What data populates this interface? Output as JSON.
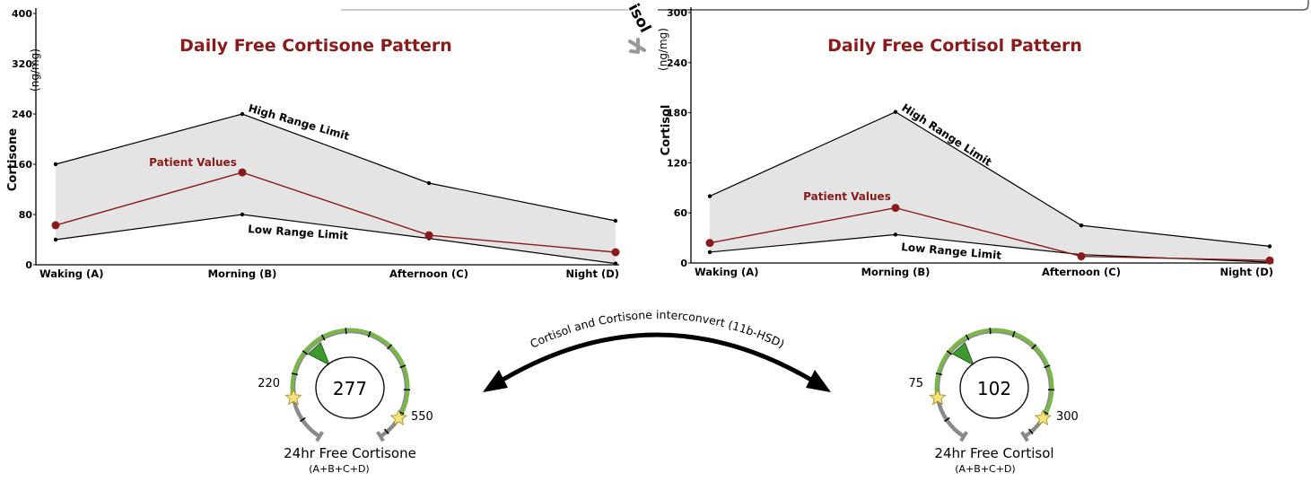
{
  "chart_data": [
    {
      "type": "line",
      "title": "Daily Free Cortisone Pattern",
      "ylabel": "Cortisone",
      "yunit": "(ng/mg)",
      "ylim": [
        0,
        400
      ],
      "yticks": [
        "0",
        "80",
        "160",
        "240",
        "320",
        "400"
      ],
      "categories": [
        "Waking (A)",
        "Morning (B)",
        "Afternoon (C)",
        "Night (D)"
      ],
      "series": [
        {
          "name": "High Range Limit",
          "values": [
            160,
            240,
            130,
            70
          ],
          "color": "#000000"
        },
        {
          "name": "Low Range Limit",
          "values": [
            40,
            80,
            42,
            2
          ],
          "color": "#000000"
        },
        {
          "name": "Patient Values",
          "values": [
            63,
            147,
            47,
            20
          ],
          "color": "#8b1a1a"
        }
      ],
      "band_color": "#e4e4e4"
    },
    {
      "type": "line",
      "title": "Daily Free Cortisol Pattern",
      "ylabel": "Cortisol",
      "yunit": "(ng/mg)",
      "ylim": [
        0,
        300
      ],
      "yticks": [
        "0",
        "60",
        "120",
        "180",
        "240",
        "300"
      ],
      "categories": [
        "Waking (A)",
        "Morning (B)",
        "Afternoon (C)",
        "Night (D)"
      ],
      "series": [
        {
          "name": "High Range Limit",
          "values": [
            80,
            181,
            45,
            20
          ],
          "color": "#000000"
        },
        {
          "name": "Low Range Limit",
          "values": [
            13,
            34,
            10,
            1
          ],
          "color": "#000000"
        },
        {
          "name": "Patient Values",
          "values": [
            24,
            66,
            8,
            3
          ],
          "color": "#8b1a1a"
        }
      ],
      "band_color": "#e4e4e4"
    }
  ],
  "partial_label": "isol",
  "gauges": [
    {
      "value": "277",
      "low": "220",
      "high": "550",
      "name": "24hr Free Cortisone",
      "sub": "(A+B+C+D)"
    },
    {
      "value": "102",
      "low": "75",
      "high": "300",
      "name": "24hr Free Cortisol",
      "sub": "(A+B+C+D)"
    }
  ],
  "arrow_caption": "Cortisol and Cortisone interconvert (11b-HSD)",
  "colors": {
    "title": "#8b1a1a",
    "patient": "#8b1a1a",
    "gauge_ok": "#7ab648",
    "gauge_track": "#8a8a8a",
    "star": "#f5e27a"
  }
}
